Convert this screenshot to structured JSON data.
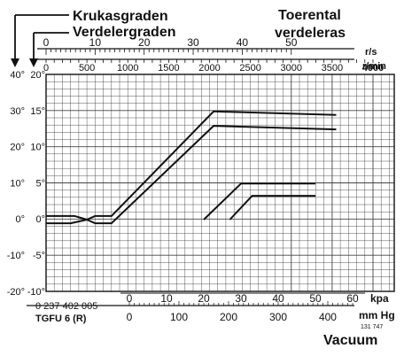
{
  "chart_data": {
    "type": "line",
    "title_left_1": "Krukasgraden",
    "title_left_2": "Verdelergraden",
    "title_right_1": "Toerental",
    "title_right_2": "verdeleras",
    "top_axis_1": {
      "unit": "r/s",
      "ticks": [
        0,
        10,
        20,
        30,
        40,
        50
      ]
    },
    "top_axis_2": {
      "unit": "r/min",
      "ticks": [
        0,
        500,
        1000,
        1500,
        2000,
        2500,
        3000,
        3500,
        4000
      ],
      "range": [
        0,
        4000
      ]
    },
    "y_axis_left": {
      "ticks": [
        "40°",
        "30°",
        "20°",
        "10°",
        "0°",
        "-10°",
        "-20°"
      ]
    },
    "y_axis_right": {
      "ticks": [
        "20°",
        "15°",
        "10°",
        "5°",
        "0°",
        "-5°",
        "-10°"
      ],
      "range": [
        -10,
        20
      ]
    },
    "bottom_axis_1": {
      "unit": "kpa",
      "ticks": [
        0,
        10,
        20,
        30,
        40,
        50,
        60
      ]
    },
    "bottom_axis_2": {
      "unit": "mm Hg",
      "ticks": [
        0,
        100,
        200,
        300,
        400
      ]
    },
    "part_number": "0 237 402 005",
    "model": "TGFU 6 (R)",
    "doc_code": "131 747",
    "vacuum_label": "Vacuum",
    "series": [
      {
        "axis": "rpm",
        "points": [
          [
            0,
            0.5
          ],
          [
            350,
            0.5
          ],
          [
            500,
            0
          ],
          [
            600,
            0.5
          ],
          [
            800,
            0.5
          ],
          [
            2050,
            15
          ],
          [
            3550,
            14.5
          ]
        ]
      },
      {
        "axis": "rpm",
        "points": [
          [
            0,
            -0.5
          ],
          [
            300,
            -0.5
          ],
          [
            500,
            0
          ],
          [
            600,
            -0.5
          ],
          [
            800,
            -0.5
          ],
          [
            2050,
            13
          ],
          [
            3550,
            12.5
          ]
        ]
      },
      {
        "axis": "kpa",
        "points": [
          [
            20,
            0
          ],
          [
            30,
            5
          ],
          [
            50,
            5
          ]
        ]
      },
      {
        "axis": "kpa",
        "points": [
          [
            27,
            0
          ],
          [
            33,
            3.3
          ],
          [
            50,
            3.3
          ]
        ]
      }
    ]
  }
}
